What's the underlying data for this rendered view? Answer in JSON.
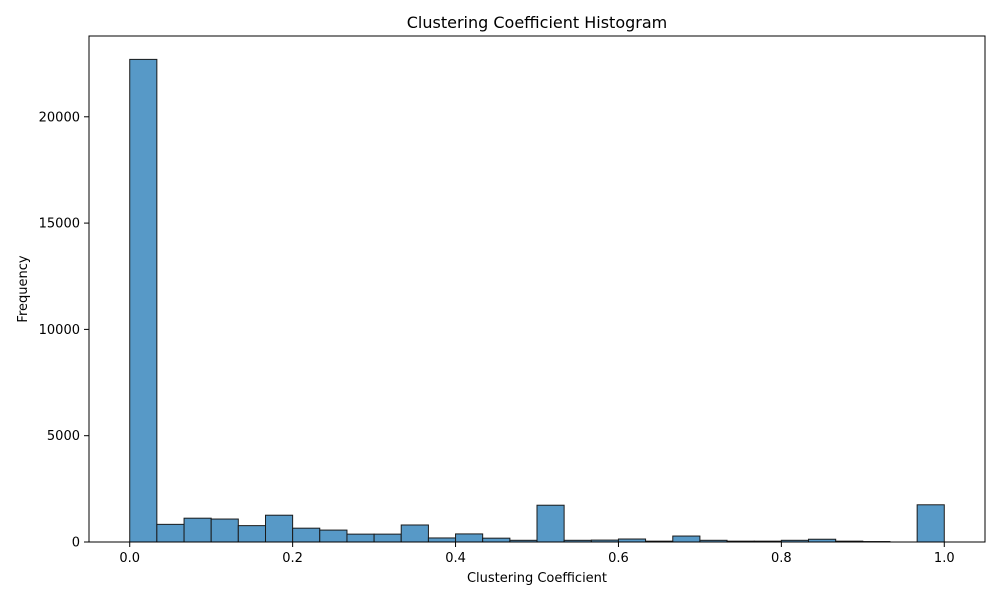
{
  "chart_data": {
    "type": "bar",
    "title": "Clustering Coefficient Histogram",
    "xlabel": "Clustering Coefficient",
    "ylabel": "Frequency",
    "xlim": [
      -0.05,
      1.05
    ],
    "ylim": [
      0,
      23800
    ],
    "xticks": [
      0.0,
      0.2,
      0.4,
      0.6,
      0.8,
      1.0
    ],
    "xtick_labels": [
      "0.0",
      "0.2",
      "0.4",
      "0.6",
      "0.8",
      "1.0"
    ],
    "yticks": [
      0,
      5000,
      10000,
      15000,
      20000
    ],
    "ytick_labels": [
      "0",
      "5000",
      "10000",
      "15000",
      "20000"
    ],
    "grid": false,
    "bar_color": "#5799c7",
    "edge_color": "#1a1a1a",
    "bin_edges": [
      0.0,
      0.0333,
      0.0667,
      0.1,
      0.1333,
      0.1667,
      0.2,
      0.2333,
      0.2667,
      0.3,
      0.3333,
      0.3667,
      0.4,
      0.4333,
      0.4667,
      0.5,
      0.5333,
      0.5667,
      0.6,
      0.6333,
      0.6667,
      0.7,
      0.7333,
      0.7667,
      0.8,
      0.8333,
      0.8667,
      0.9,
      0.9333,
      0.9667,
      1.0
    ],
    "values": [
      22700,
      830,
      1120,
      1080,
      770,
      1260,
      650,
      560,
      370,
      370,
      800,
      190,
      380,
      180,
      80,
      1730,
      80,
      90,
      140,
      40,
      280,
      80,
      40,
      40,
      80,
      130,
      40,
      20,
      0,
      1750
    ]
  }
}
